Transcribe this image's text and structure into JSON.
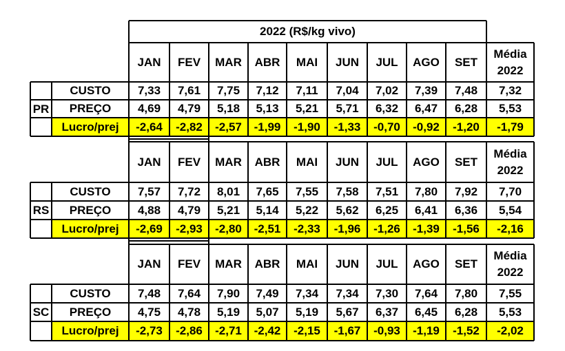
{
  "title": "2022 (R$/kg vivo)",
  "months": [
    "JAN",
    "FEV",
    "MAR",
    "ABR",
    "MAI",
    "JUN",
    "JUL",
    "AGO",
    "SET"
  ],
  "average_header": [
    "Média",
    "2022"
  ],
  "row_labels": [
    "CUSTO",
    "PREÇO",
    "Lucro/prej"
  ],
  "states": [
    {
      "code": "PR",
      "rows": [
        {
          "values": [
            "7,33",
            "7,61",
            "7,75",
            "7,12",
            "7,11",
            "7,04",
            "7,02",
            "7,39",
            "7,48"
          ],
          "avg": "7,32"
        },
        {
          "values": [
            "4,69",
            "4,79",
            "5,18",
            "5,13",
            "5,21",
            "5,71",
            "6,32",
            "6,47",
            "6,28"
          ],
          "avg": "5,53"
        },
        {
          "values": [
            "-2,64",
            "-2,82",
            "-2,57",
            "-1,99",
            "-1,90",
            "-1,33",
            "-0,70",
            "-0,92",
            "-1,20"
          ],
          "avg": "-1,79"
        }
      ]
    },
    {
      "code": "RS",
      "rows": [
        {
          "values": [
            "7,57",
            "7,72",
            "8,01",
            "7,65",
            "7,55",
            "7,58",
            "7,51",
            "7,80",
            "7,92"
          ],
          "avg": "7,70"
        },
        {
          "values": [
            "4,88",
            "4,79",
            "5,21",
            "5,14",
            "5,22",
            "5,62",
            "6,25",
            "6,41",
            "6,36"
          ],
          "avg": "5,54"
        },
        {
          "values": [
            "-2,69",
            "-2,93",
            "-2,80",
            "-2,51",
            "-2,33",
            "-1,96",
            "-1,26",
            "-1,39",
            "-1,56"
          ],
          "avg": "-2,16"
        }
      ]
    },
    {
      "code": "SC",
      "rows": [
        {
          "values": [
            "7,48",
            "7,64",
            "7,90",
            "7,49",
            "7,34",
            "7,34",
            "7,30",
            "7,64",
            "7,80"
          ],
          "avg": "7,55"
        },
        {
          "values": [
            "4,75",
            "4,78",
            "5,19",
            "5,07",
            "5,19",
            "5,67",
            "6,37",
            "6,45",
            "6,28"
          ],
          "avg": "5,53"
        },
        {
          "values": [
            "-2,73",
            "-2,86",
            "-2,71",
            "-2,42",
            "-2,15",
            "-1,67",
            "-0,93",
            "-1,19",
            "-1,52"
          ],
          "avg": "-2,02"
        }
      ]
    }
  ],
  "colors": {
    "highlight": "#ffff00",
    "border": "#000000"
  }
}
